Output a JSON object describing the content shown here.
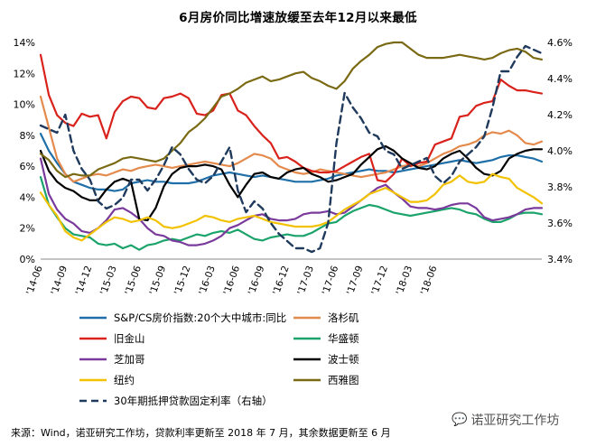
{
  "chart_data": {
    "type": "line",
    "title": "6月房价同比增速放缓至去年12月以来最低",
    "xlabel": "",
    "ylabel": "",
    "y2label": "",
    "ylim": [
      0,
      14
    ],
    "y2lim": [
      3.4,
      4.6
    ],
    "yticks": [
      "0%",
      "2%",
      "4%",
      "6%",
      "8%",
      "10%",
      "12%",
      "14%"
    ],
    "y2ticks": [
      "3.4%",
      "3.6%",
      "3.8%",
      "4.0%",
      "4.2%",
      "4.4%",
      "4.6%"
    ],
    "xticks": [
      "'14-06",
      "'14-09",
      "'14-12",
      "'15-03",
      "'15-06",
      "'15-09",
      "'15-12",
      "'16-03",
      "'16-06",
      "'16-09",
      "'16-12",
      "'17-03",
      "'17-06",
      "'17-09",
      "'17-12",
      "'18-03",
      "'18-06"
    ],
    "x_start": "2014-06",
    "x_end": "2018-07",
    "legend_position": "bottom",
    "series": [
      {
        "name": "S&P/CS房价指数:20个大中城市:同比",
        "color": "#1f6fa8",
        "style": "solid",
        "axis": "left",
        "values": [
          8.1,
          7.0,
          6.2,
          5.5,
          5.0,
          4.8,
          4.6,
          4.5,
          4.5,
          4.4,
          4.5,
          4.9,
          5.0,
          5.1,
          5.0,
          5.0,
          4.9,
          4.9,
          4.9,
          5.0,
          5.2,
          5.4,
          5.5,
          5.6,
          5.5,
          5.4,
          5.3,
          5.4,
          5.3,
          5.2,
          5.1,
          5.0,
          5.0,
          5.0,
          5.1,
          5.2,
          5.4,
          5.5,
          5.6,
          5.7,
          5.8,
          5.7,
          5.7,
          5.6,
          5.7,
          5.8,
          5.9,
          6.0,
          6.1,
          6.2,
          6.3,
          6.4,
          6.3,
          6.2,
          6.3,
          6.4,
          6.6,
          6.7,
          6.7,
          6.6,
          6.5,
          6.3
        ]
      },
      {
        "name": "洛杉矶",
        "color": "#e38a4c",
        "style": "solid",
        "axis": "left",
        "values": [
          10.5,
          8.5,
          6.5,
          5.5,
          5.0,
          5.2,
          5.4,
          5.5,
          5.4,
          5.6,
          5.8,
          5.7,
          5.9,
          6.0,
          6.1,
          6.0,
          5.9,
          6.0,
          6.1,
          6.2,
          6.3,
          6.2,
          6.1,
          6.0,
          6.2,
          6.5,
          6.8,
          6.7,
          6.5,
          6.0,
          5.8,
          5.6,
          5.5,
          5.6,
          5.8,
          5.7,
          5.6,
          5.5,
          5.4,
          5.3,
          5.4,
          5.5,
          5.6,
          5.8,
          6.0,
          6.1,
          6.0,
          6.2,
          6.5,
          6.8,
          7.0,
          7.3,
          7.4,
          7.6,
          8.0,
          8.2,
          8.1,
          8.3,
          8.0,
          7.5,
          7.4,
          7.6
        ]
      },
      {
        "name": "旧金山",
        "color": "#d9221c",
        "style": "solid",
        "axis": "left",
        "values": [
          13.2,
          10.6,
          9.3,
          8.8,
          8.6,
          9.4,
          9.2,
          9.3,
          7.8,
          9.5,
          10.2,
          10.5,
          10.4,
          9.8,
          9.7,
          10.4,
          10.5,
          10.7,
          10.4,
          9.4,
          9.3,
          9.6,
          10.6,
          10.7,
          9.6,
          9.3,
          8.6,
          8.0,
          7.5,
          6.5,
          6.6,
          6.3,
          5.9,
          5.7,
          5.6,
          5.6,
          5.7,
          6.0,
          6.3,
          6.6,
          6.8,
          5.1,
          5.0,
          5.5,
          6.5,
          6.0,
          6.2,
          6.3,
          7.4,
          7.6,
          7.8,
          9.2,
          9.3,
          9.9,
          10.1,
          10.2,
          11.6,
          11.2,
          10.9,
          10.9,
          10.8,
          10.7
        ]
      },
      {
        "name": "华盛顿",
        "color": "#1aa36a",
        "style": "solid",
        "axis": "left",
        "values": [
          5.3,
          3.5,
          2.7,
          2.0,
          1.6,
          1.5,
          1.4,
          1.0,
          0.9,
          1.0,
          0.7,
          0.9,
          0.6,
          0.9,
          1.0,
          1.2,
          1.3,
          1.2,
          1.4,
          1.6,
          1.5,
          1.7,
          1.8,
          1.7,
          1.9,
          1.6,
          1.3,
          1.2,
          1.4,
          1.5,
          1.6,
          1.5,
          1.5,
          1.7,
          2.0,
          2.3,
          2.4,
          2.8,
          3.1,
          3.3,
          3.5,
          3.4,
          3.2,
          3.0,
          2.9,
          2.8,
          2.9,
          3.0,
          3.1,
          3.2,
          3.3,
          3.2,
          3.0,
          2.9,
          2.6,
          2.4,
          2.4,
          2.6,
          2.9,
          3.0,
          3.0,
          2.9
        ]
      },
      {
        "name": "芝加哥",
        "color": "#7a3a9c",
        "style": "solid",
        "axis": "left",
        "values": [
          6.5,
          4.2,
          3.2,
          2.6,
          2.3,
          1.8,
          1.7,
          2.0,
          2.5,
          3.2,
          3.3,
          3.0,
          2.6,
          2.0,
          1.6,
          1.5,
          1.2,
          1.1,
          0.9,
          0.9,
          1.0,
          1.2,
          1.5,
          2.0,
          2.2,
          2.5,
          2.8,
          2.9,
          2.6,
          2.5,
          2.5,
          2.6,
          2.9,
          3.0,
          3.0,
          3.1,
          2.9,
          3.0,
          3.4,
          3.8,
          4.2,
          4.6,
          4.8,
          4.3,
          3.9,
          3.4,
          3.3,
          3.3,
          3.2,
          3.3,
          3.5,
          3.6,
          3.6,
          3.3,
          2.7,
          2.5,
          2.6,
          2.7,
          2.9,
          3.2,
          3.3,
          3.3
        ]
      },
      {
        "name": "波士顿",
        "color": "#000000",
        "style": "solid",
        "axis": "left",
        "values": [
          7.0,
          5.7,
          5.0,
          4.6,
          4.4,
          4.0,
          3.8,
          3.8,
          4.5,
          5.0,
          5.2,
          5.0,
          2.6,
          2.5,
          3.3,
          4.7,
          5.5,
          5.9,
          6.0,
          6.0,
          6.1,
          6.0,
          5.8,
          4.8,
          4.0,
          4.8,
          5.5,
          5.6,
          5.3,
          5.2,
          5.6,
          5.8,
          5.9,
          5.5,
          5.3,
          5.0,
          5.1,
          5.3,
          5.5,
          6.1,
          6.6,
          7.1,
          7.3,
          7.0,
          6.5,
          6.2,
          5.9,
          5.8,
          6.0,
          6.5,
          6.8,
          7.0,
          6.5,
          5.9,
          5.5,
          5.4,
          5.7,
          6.5,
          6.8,
          7.0,
          7.1,
          7.1
        ]
      },
      {
        "name": "纽约",
        "color": "#f2c200",
        "style": "solid",
        "axis": "left",
        "values": [
          4.3,
          3.5,
          2.8,
          1.8,
          1.4,
          1.2,
          1.6,
          2.0,
          2.4,
          2.7,
          2.6,
          2.4,
          2.5,
          2.7,
          2.5,
          2.1,
          2.0,
          2.1,
          2.3,
          2.5,
          2.8,
          2.7,
          2.5,
          2.4,
          2.6,
          2.7,
          2.8,
          2.6,
          2.4,
          2.3,
          2.2,
          2.1,
          2.1,
          2.1,
          2.2,
          2.4,
          2.8,
          3.2,
          3.5,
          3.8,
          4.2,
          4.4,
          4.6,
          4.3,
          4.0,
          3.7,
          3.7,
          3.8,
          4.2,
          4.8,
          5.0,
          5.4,
          5.0,
          4.9,
          5.0,
          5.5,
          5.3,
          5.2,
          4.6,
          4.3,
          4.0,
          3.6
        ]
      },
      {
        "name": "西雅图",
        "color": "#7b6a14",
        "style": "solid",
        "axis": "left",
        "values": [
          6.8,
          6.4,
          5.7,
          5.3,
          5.5,
          5.4,
          5.4,
          5.8,
          6.0,
          6.2,
          6.5,
          6.6,
          6.5,
          6.4,
          6.3,
          6.5,
          7.0,
          7.5,
          8.2,
          8.6,
          9.1,
          9.8,
          10.5,
          10.7,
          11.0,
          11.4,
          11.6,
          11.8,
          11.5,
          11.6,
          11.8,
          12.0,
          12.1,
          11.7,
          11.5,
          11.2,
          11.0,
          11.5,
          12.3,
          12.8,
          13.2,
          13.7,
          13.9,
          14.0,
          14.0,
          13.6,
          13.2,
          13.0,
          13.0,
          13.0,
          13.1,
          13.2,
          13.1,
          13.0,
          12.9,
          13.0,
          13.3,
          13.5,
          13.6,
          13.4,
          13.0,
          12.9
        ]
      },
      {
        "name": "30年期抵押贷款固定利率（右轴）",
        "color": "#1f3a5c",
        "style": "dashed",
        "axis": "right",
        "values": [
          4.14,
          4.12,
          4.1,
          4.2,
          4.0,
          3.9,
          3.84,
          3.72,
          3.68,
          3.7,
          3.74,
          3.84,
          3.84,
          3.78,
          3.84,
          3.92,
          4.02,
          3.98,
          3.9,
          3.84,
          3.82,
          3.86,
          3.94,
          4.02,
          3.78,
          3.66,
          3.72,
          3.68,
          3.6,
          3.54,
          3.5,
          3.46,
          3.46,
          3.44,
          3.46,
          3.6,
          4.04,
          4.32,
          4.24,
          4.18,
          4.1,
          4.08,
          4.0,
          3.98,
          3.9,
          3.92,
          3.94,
          3.96,
          3.86,
          3.82,
          3.86,
          3.94,
          3.98,
          4.02,
          4.08,
          4.24,
          4.44,
          4.44,
          4.52,
          4.58,
          4.56,
          4.54
        ]
      }
    ]
  },
  "footer": {
    "source": "来源：Wind，诺亚研究工作坊，贷款利率更新至 2018 年 7 月，其余数据更新至 6 月"
  },
  "watermark": {
    "text": "诺亚研究工作坊",
    "icon": "wechat-icon"
  }
}
